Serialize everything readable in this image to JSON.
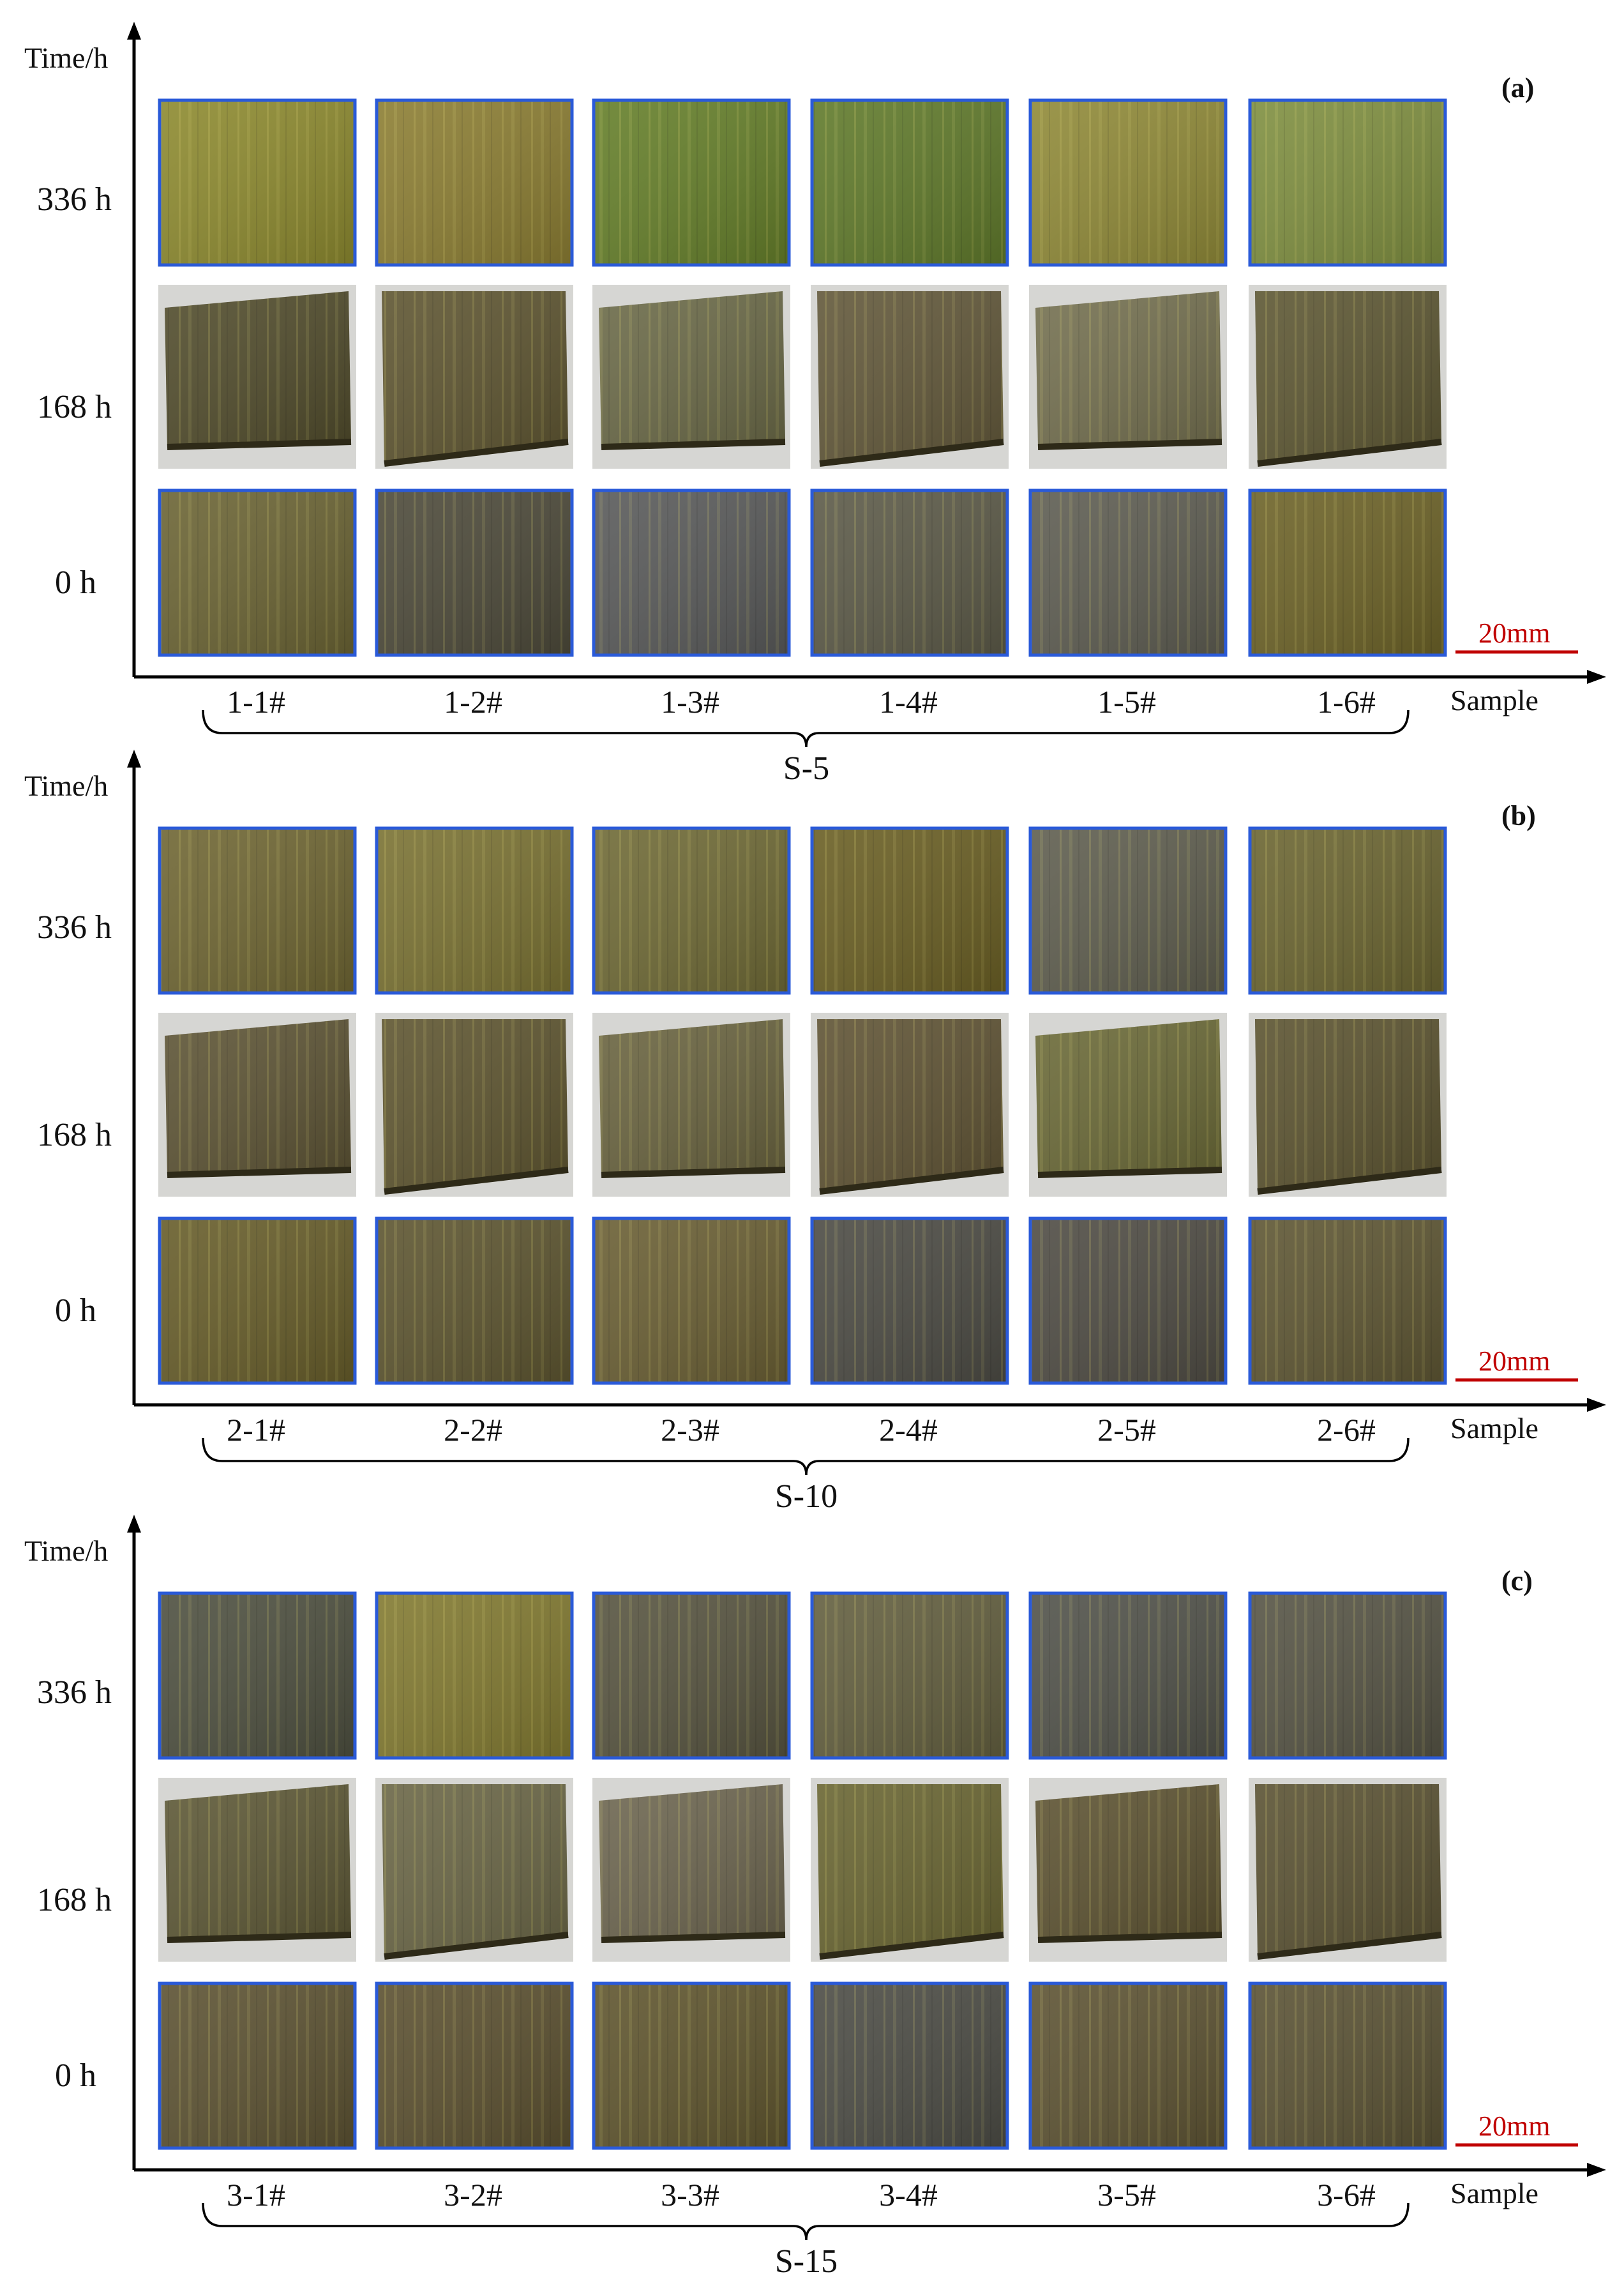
{
  "axes": {
    "y_title": "Time/h",
    "x_title": "Sample",
    "scale_bar": "20mm",
    "scale_color": "#c00000"
  },
  "time_rows": [
    "336 h",
    "168 h",
    "0 h"
  ],
  "frame_color": "#2a5ad8",
  "panels": [
    {
      "tag": "(a)",
      "group": "S-5",
      "samples": [
        "1-1#",
        "1-2#",
        "1-3#",
        "1-4#",
        "1-5#",
        "1-6#"
      ]
    },
    {
      "tag": "(b)",
      "group": "S-10",
      "samples": [
        "2-1#",
        "2-2#",
        "2-3#",
        "2-4#",
        "2-5#",
        "2-6#"
      ]
    },
    {
      "tag": "(c)",
      "group": "S-15",
      "samples": [
        "3-1#",
        "3-2#",
        "3-3#",
        "3-4#",
        "3-5#",
        "3-6#"
      ]
    }
  ],
  "tints": [
    [
      "#8d8a2f",
      "#8c7e33",
      "#657f2a",
      "#607a2b",
      "#908a38",
      "#7f8f40",
      "#514c2c",
      "#5e5531",
      "#6b6a48",
      "#62583a",
      "#747050",
      "#5d5733",
      "#6b6434",
      "#4d4a3a",
      "#595a5a",
      "#5c5a48",
      "#5e5d52",
      "#6d6328"
    ],
    [
      "#6f6633",
      "#7a7233",
      "#6f6a36",
      "#6a5f24",
      "#5f5e4f",
      "#6b6531",
      "#5d5435",
      "#5e5530",
      "#6a6440",
      "#5f5334",
      "#6b6a38",
      "#5b5330",
      "#675d2a",
      "#5d5530",
      "#6a5f34",
      "#4c4b44",
      "#4f4c44",
      "#5e5633"
    ],
    [
      "#4e5040",
      "#827a31",
      "#575440",
      "#635f3f",
      "#51524a",
      "#565445",
      "#5d5836",
      "#6a6646",
      "#6d6650",
      "#696532",
      "#5d5332",
      "#5a5233",
      "#5c5232",
      "#5b5030",
      "#5f552e",
      "#4c4c45",
      "#5d5333",
      "#5a5234"
    ]
  ]
}
